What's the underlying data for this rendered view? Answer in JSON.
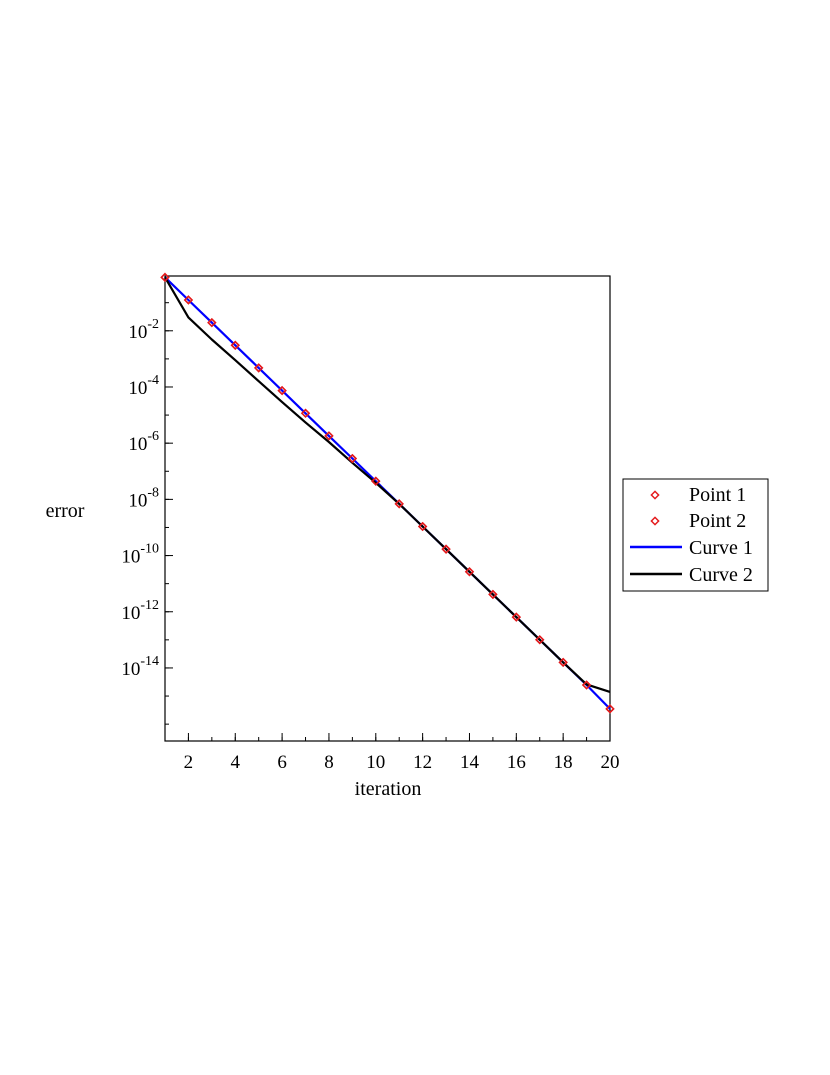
{
  "chart_data": {
    "type": "line",
    "title": "",
    "xlabel": "iteration",
    "ylabel": "error",
    "y_scale": "log",
    "xlim": [
      1,
      20
    ],
    "ylim_exponent": [
      -16.6,
      -0.05
    ],
    "ylim": [
      2.5e-17,
      0.9
    ],
    "grid": false,
    "legend_position": "right",
    "x_ticks": [
      2,
      4,
      6,
      8,
      10,
      12,
      14,
      16,
      18,
      20
    ],
    "y_ticks": [
      {
        "base": "10",
        "exp": "-2",
        "value": 0.01
      },
      {
        "base": "10",
        "exp": "-4",
        "value": 0.0001
      },
      {
        "base": "10",
        "exp": "-6",
        "value": 1e-06
      },
      {
        "base": "10",
        "exp": "-8",
        "value": 1e-08
      },
      {
        "base": "10",
        "exp": "-10",
        "value": 1e-10
      },
      {
        "base": "10",
        "exp": "-12",
        "value": 1e-12
      },
      {
        "base": "10",
        "exp": "-14",
        "value": 1e-14
      }
    ],
    "x": [
      1,
      2,
      3,
      4,
      5,
      6,
      7,
      8,
      9,
      10,
      11,
      12,
      13,
      14,
      15,
      16,
      17,
      18,
      19,
      20
    ],
    "series": [
      {
        "name": "Point 1",
        "kind": "points",
        "marker": "diamond-open",
        "color": "#e41a1c",
        "values": [
          0.8,
          0.125,
          0.0195,
          0.00305,
          0.000477,
          7.45e-05,
          1.16e-05,
          1.82e-06,
          2.84e-07,
          4.44e-08,
          6.94e-09,
          1.08e-09,
          1.69e-10,
          2.65e-11,
          4.14e-12,
          6.46e-13,
          1.01e-13,
          1.58e-14,
          2.47e-15,
          3.5e-16
        ]
      },
      {
        "name": "Point 2",
        "kind": "points",
        "marker": "diamond-open",
        "color": "#e41a1c",
        "values": [
          0.8,
          0.125,
          0.0195,
          0.00305,
          0.000477,
          7.45e-05,
          1.16e-05,
          1.82e-06,
          2.84e-07,
          4.44e-08,
          6.94e-09,
          1.08e-09,
          1.69e-10,
          2.65e-11,
          4.14e-12,
          6.46e-13,
          1.01e-13,
          1.58e-14,
          2.47e-15,
          3.5e-16
        ]
      },
      {
        "name": "Curve 1",
        "kind": "line",
        "color": "#0000ff",
        "values": [
          0.8,
          0.125,
          0.0195,
          0.00305,
          0.000477,
          7.45e-05,
          1.16e-05,
          1.82e-06,
          2.84e-07,
          4.44e-08,
          6.94e-09,
          1.08e-09,
          1.69e-10,
          2.65e-11,
          4.14e-12,
          6.46e-13,
          1.01e-13,
          1.58e-14,
          2.47e-15,
          3.5e-16
        ]
      },
      {
        "name": "Curve 2",
        "kind": "line",
        "color": "#000000",
        "values": [
          0.8,
          0.03,
          0.0049,
          0.0009,
          0.00016,
          2.9e-05,
          5.5e-06,
          1.1e-06,
          2e-07,
          3.9e-08,
          6.9e-09,
          1.08e-09,
          1.69e-10,
          2.65e-11,
          4.14e-12,
          6.46e-13,
          1.01e-13,
          1.58e-14,
          2.6e-15,
          1.4e-15
        ]
      }
    ]
  }
}
